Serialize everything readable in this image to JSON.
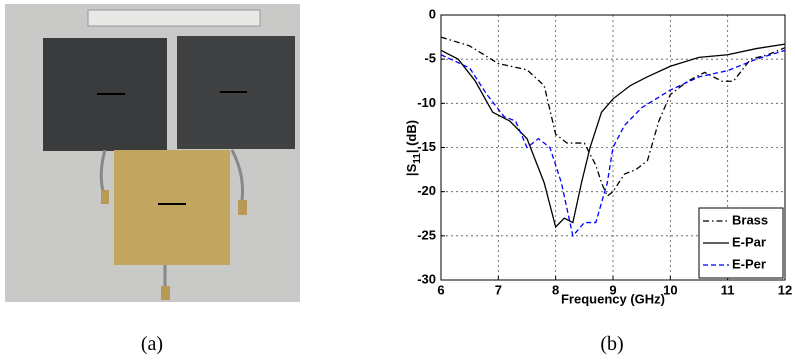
{
  "captions": [
    "(a)",
    "(b)"
  ],
  "chart_data": {
    "type": "line",
    "xlabel": "Frequency (GHz)",
    "ylabel_parts": [
      "|S",
      "11",
      "| (dB)"
    ],
    "xlim": [
      6,
      12
    ],
    "xticks": [
      6,
      7,
      8,
      9,
      10,
      11,
      12
    ],
    "ylim": [
      -30,
      0
    ],
    "yticks": [
      0,
      -5,
      -10,
      -15,
      -20,
      -25,
      -30
    ],
    "grid": true,
    "legend": "lower right",
    "series": [
      {
        "name": "Brass",
        "color": "#000000",
        "linestyle": "dashdot",
        "x": [
          6,
          6.5,
          7,
          7.5,
          7.8,
          8,
          8.2,
          8.5,
          8.7,
          8.8,
          8.9,
          9,
          9.2,
          9.4,
          9.6,
          9.8,
          10,
          10.3,
          10.6,
          10.9,
          11.1,
          11.4,
          11.7,
          12
        ],
        "values": [
          -2.5,
          -3.5,
          -5.5,
          -6.2,
          -8,
          -13.5,
          -14.5,
          -14.5,
          -17,
          -19,
          -20.5,
          -20,
          -18,
          -17.5,
          -16.5,
          -12,
          -9,
          -7.5,
          -6.5,
          -7.5,
          -7.5,
          -5,
          -4.5,
          -3.7
        ]
      },
      {
        "name": "E-Par",
        "color": "#000000",
        "linestyle": "solid",
        "x": [
          6,
          6.3,
          6.6,
          6.9,
          7.2,
          7.5,
          7.8,
          8,
          8.15,
          8.3,
          8.45,
          8.6,
          8.8,
          9,
          9.3,
          9.6,
          10,
          10.5,
          11,
          11.5,
          12
        ],
        "values": [
          -4,
          -5,
          -7.5,
          -11,
          -12,
          -14,
          -19,
          -24,
          -23,
          -23.5,
          -19,
          -15,
          -11,
          -9.5,
          -8,
          -7,
          -5.8,
          -4.8,
          -4.5,
          -3.8,
          -3.3
        ]
      },
      {
        "name": "E-Per",
        "color": "#0000ff",
        "linestyle": "dashed",
        "x": [
          6,
          6.5,
          6.8,
          7.1,
          7.3,
          7.5,
          7.7,
          7.9,
          8.1,
          8.3,
          8.5,
          8.7,
          8.9,
          9,
          9.2,
          9.5,
          10,
          10.5,
          11,
          11.5,
          12
        ],
        "values": [
          -4.5,
          -6,
          -9,
          -11.5,
          -12,
          -15,
          -14,
          -15,
          -19,
          -25,
          -23.5,
          -23.5,
          -19,
          -15,
          -12.5,
          -10.5,
          -8.5,
          -7,
          -6.3,
          -5,
          -4
        ]
      }
    ]
  }
}
